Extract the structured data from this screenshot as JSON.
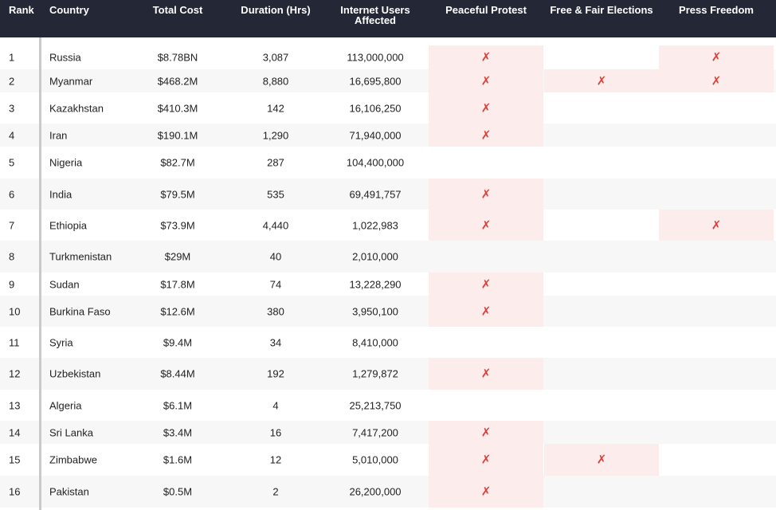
{
  "colors": {
    "header_bg": "#232736",
    "mark": "#d9423a",
    "highlight": "#fdecec",
    "stripe": "#f7f7f7"
  },
  "mark_symbol": "✗",
  "columns": {
    "rank": "Rank",
    "country": "Country",
    "total_cost": "Total Cost",
    "duration": "Duration (Hrs)",
    "users_line1": "Internet Users",
    "users_line2": "Affected",
    "peaceful_protest": "Peaceful Protest",
    "free_fair_elections": "Free & Fair Elections",
    "press_freedom": "Press Freedom"
  },
  "rows": [
    {
      "rank": "1",
      "country": "Russia",
      "cost": "$8.78BN",
      "duration": "3,087",
      "users": "113,000,000",
      "protest": true,
      "elections": false,
      "press": true
    },
    {
      "rank": "2",
      "country": "Myanmar",
      "cost": "$468.2M",
      "duration": "8,880",
      "users": "16,695,800",
      "protest": true,
      "elections": true,
      "press": true
    },
    {
      "rank": "3",
      "country": "Kazakhstan",
      "cost": "$410.3M",
      "duration": "142",
      "users": "16,106,250",
      "protest": true,
      "elections": false,
      "press": false
    },
    {
      "rank": "4",
      "country": "Iran",
      "cost": "$190.1M",
      "duration": "1,290",
      "users": "71,940,000",
      "protest": true,
      "elections": false,
      "press": false
    },
    {
      "rank": "5",
      "country": "Nigeria",
      "cost": "$82.7M",
      "duration": "287",
      "users": "104,400,000",
      "protest": false,
      "elections": false,
      "press": false
    },
    {
      "rank": "6",
      "country": "India",
      "cost": "$79.5M",
      "duration": "535",
      "users": "69,491,757",
      "protest": true,
      "elections": false,
      "press": false
    },
    {
      "rank": "7",
      "country": "Ethiopia",
      "cost": "$73.9M",
      "duration": "4,440",
      "users": "1,022,983",
      "protest": true,
      "elections": false,
      "press": true
    },
    {
      "rank": "8",
      "country": "Turkmenistan",
      "cost": "$29M",
      "duration": "40",
      "users": "2,010,000",
      "protest": false,
      "elections": false,
      "press": false
    },
    {
      "rank": "9",
      "country": "Sudan",
      "cost": "$17.8M",
      "duration": "74",
      "users": "13,228,290",
      "protest": true,
      "elections": false,
      "press": false
    },
    {
      "rank": "10",
      "country": "Burkina Faso",
      "cost": "$12.6M",
      "duration": "380",
      "users": "3,950,100",
      "protest": true,
      "elections": false,
      "press": false
    },
    {
      "rank": "11",
      "country": "Syria",
      "cost": "$9.4M",
      "duration": "34",
      "users": "8,410,000",
      "protest": false,
      "elections": false,
      "press": false
    },
    {
      "rank": "12",
      "country": "Uzbekistan",
      "cost": "$8.44M",
      "duration": "192",
      "users": "1,279,872",
      "protest": true,
      "elections": false,
      "press": false
    },
    {
      "rank": "13",
      "country": "Algeria",
      "cost": "$6.1M",
      "duration": "4",
      "users": "25,213,750",
      "protest": false,
      "elections": false,
      "press": false
    },
    {
      "rank": "14",
      "country": "Sri Lanka",
      "cost": "$3.4M",
      "duration": "16",
      "users": "7,417,200",
      "protest": true,
      "elections": false,
      "press": false
    },
    {
      "rank": "15",
      "country": "Zimbabwe",
      "cost": "$1.6M",
      "duration": "12",
      "users": "5,010,000",
      "protest": true,
      "elections": true,
      "press": false
    },
    {
      "rank": "16",
      "country": "Pakistan",
      "cost": "$0.5M",
      "duration": "2",
      "users": "26,200,000",
      "protest": true,
      "elections": false,
      "press": false
    }
  ]
}
